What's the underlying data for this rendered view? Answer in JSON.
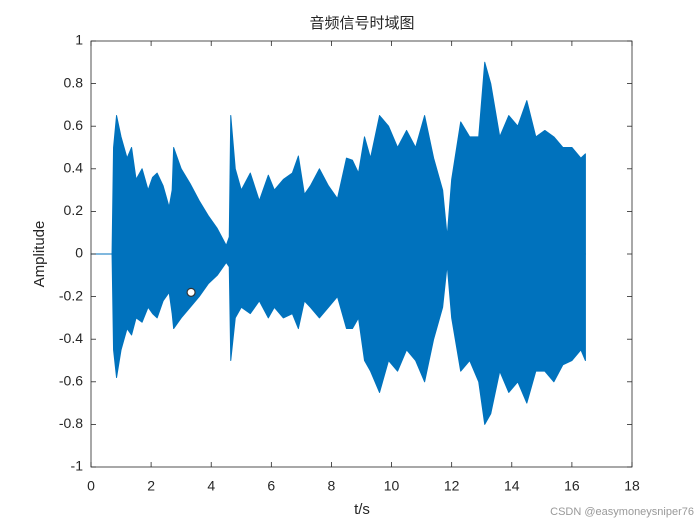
{
  "chart_data": {
    "type": "waveform",
    "title": "音频信号时域图",
    "xlabel": "t/s",
    "ylabel": "Amplitude",
    "watermark": "CSDN @easymoneysniper76",
    "x": [
      0,
      0.7,
      0.75,
      0.85,
      1.0,
      1.2,
      1.35,
      1.5,
      1.7,
      1.9,
      2.05,
      2.2,
      2.4,
      2.6,
      2.7,
      2.75,
      3.0,
      3.3,
      3.6,
      3.9,
      4.2,
      4.5,
      4.6,
      4.65,
      4.8,
      5.0,
      5.3,
      5.6,
      5.9,
      6.1,
      6.4,
      6.7,
      6.9,
      7.1,
      7.3,
      7.6,
      7.9,
      8.2,
      8.5,
      8.7,
      8.9,
      9.1,
      9.3,
      9.6,
      9.9,
      10.2,
      10.5,
      10.8,
      11.1,
      11.4,
      11.7,
      11.85,
      12.0,
      12.3,
      12.6,
      12.9,
      13.1,
      13.3,
      13.6,
      13.9,
      14.2,
      14.5,
      14.8,
      15.1,
      15.4,
      15.7,
      16.0,
      16.3,
      16.45
    ],
    "series": [
      {
        "color": "#0072bd",
        "values": [
          0,
          0,
          0.5,
          0.65,
          0.55,
          0.45,
          0.5,
          0.35,
          0.4,
          0.3,
          0.36,
          0.38,
          0.32,
          0.22,
          0.3,
          0.5,
          0.4,
          0.33,
          0.25,
          0.18,
          0.12,
          0.04,
          0.08,
          0.65,
          0.4,
          0.3,
          0.38,
          0.25,
          0.37,
          0.3,
          0.35,
          0.38,
          0.46,
          0.28,
          0.32,
          0.4,
          0.32,
          0.26,
          0.45,
          0.44,
          0.38,
          0.55,
          0.45,
          0.65,
          0.6,
          0.5,
          0.58,
          0.5,
          0.65,
          0.45,
          0.3,
          0.08,
          0.35,
          0.62,
          0.55,
          0.55,
          0.9,
          0.8,
          0.55,
          0.65,
          0.6,
          0.72,
          0.55,
          0.58,
          0.55,
          0.5,
          0.5,
          0.45,
          0.47
        ]
      },
      {
        "color": "#0072bd",
        "values": [
          0,
          0,
          -0.45,
          -0.58,
          -0.45,
          -0.35,
          -0.38,
          -0.3,
          -0.32,
          -0.25,
          -0.28,
          -0.3,
          -0.22,
          -0.18,
          -0.28,
          -0.35,
          -0.3,
          -0.25,
          -0.2,
          -0.14,
          -0.1,
          -0.04,
          -0.06,
          -0.5,
          -0.3,
          -0.25,
          -0.28,
          -0.22,
          -0.3,
          -0.25,
          -0.3,
          -0.28,
          -0.35,
          -0.22,
          -0.25,
          -0.3,
          -0.25,
          -0.2,
          -0.35,
          -0.35,
          -0.3,
          -0.5,
          -0.55,
          -0.65,
          -0.5,
          -0.55,
          -0.45,
          -0.5,
          -0.6,
          -0.4,
          -0.25,
          -0.05,
          -0.3,
          -0.55,
          -0.5,
          -0.6,
          -0.8,
          -0.75,
          -0.55,
          -0.65,
          -0.6,
          -0.7,
          -0.55,
          -0.55,
          -0.6,
          -0.52,
          -0.5,
          -0.45,
          -0.5
        ]
      }
    ],
    "datatip": {
      "x": 3.33,
      "y": -0.18
    },
    "xlim": [
      0,
      18
    ],
    "xticks": [
      0,
      2,
      4,
      6,
      8,
      10,
      12,
      14,
      16,
      18
    ],
    "ylim": [
      -1,
      1
    ],
    "yticks": [
      -1,
      -0.8,
      -0.6,
      -0.4,
      -0.2,
      0,
      0.2,
      0.4,
      0.6,
      0.8,
      1
    ],
    "grid": false
  }
}
